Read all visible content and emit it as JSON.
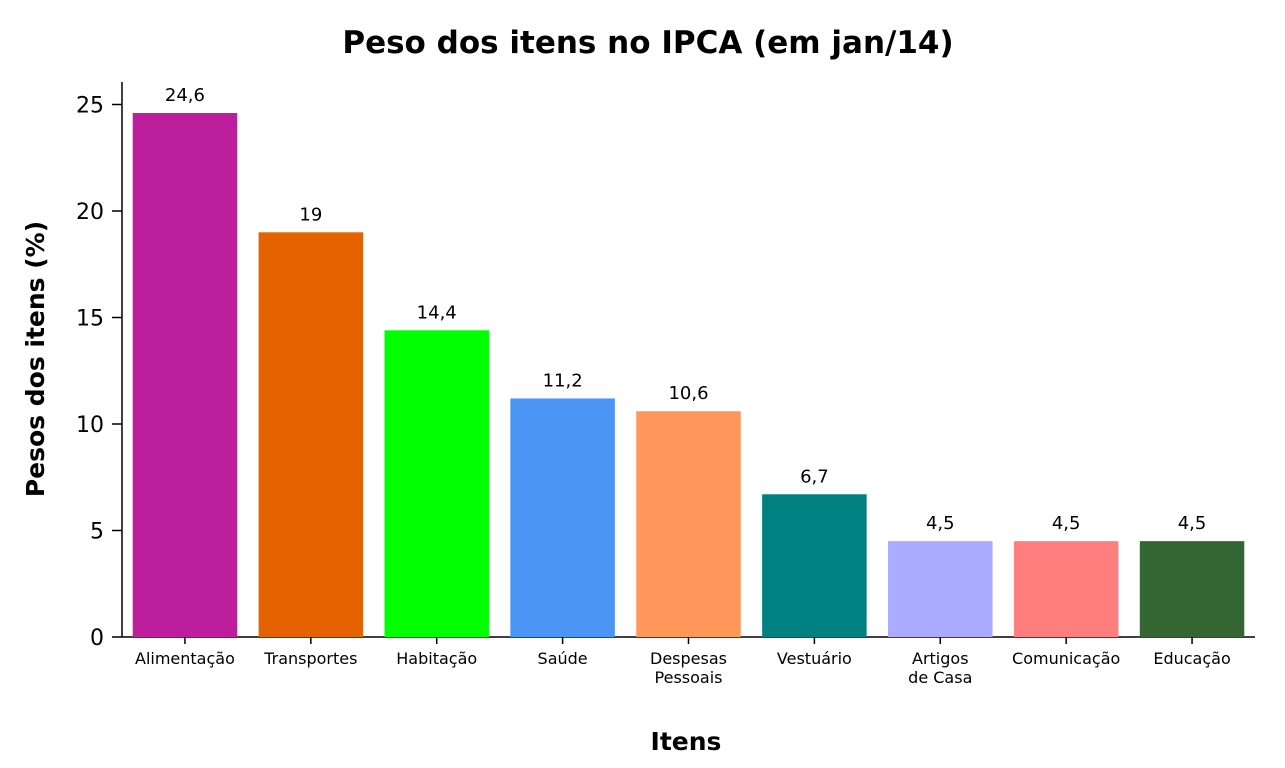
{
  "chart_data": {
    "type": "bar",
    "title": "Peso dos itens no IPCA (em jan/14)",
    "xlabel": "Itens",
    "ylabel": "Pesos dos itens (%)",
    "ylim": [
      0,
      26.5
    ],
    "yticks": [
      "0",
      "5",
      "10",
      "15",
      "20",
      "25"
    ],
    "grid": false,
    "legend": "none",
    "categories": [
      [
        "Alimentação"
      ],
      [
        "Transportes"
      ],
      [
        "Habitação"
      ],
      [
        "Saúde"
      ],
      [
        "Despesas",
        "Pessoais"
      ],
      [
        "Vestuário"
      ],
      [
        "Artigos",
        "de Casa"
      ],
      [
        "Comunicação"
      ],
      [
        "Educação"
      ]
    ],
    "values": [
      24.6,
      19,
      14.4,
      11.2,
      10.6,
      6.7,
      4.5,
      4.5,
      4.5
    ],
    "value_labels": [
      "24,6",
      "19",
      "14,4",
      "11,2",
      "10,6",
      "6,7",
      "4,5",
      "4,5",
      "4,5"
    ],
    "colors": [
      "#BC1E9C",
      "#E46200",
      "#00FF00",
      "#4B95F5",
      "#FF975A",
      "#008080",
      "#AAAAFF",
      "#FF7E7E",
      "#336633"
    ]
  }
}
